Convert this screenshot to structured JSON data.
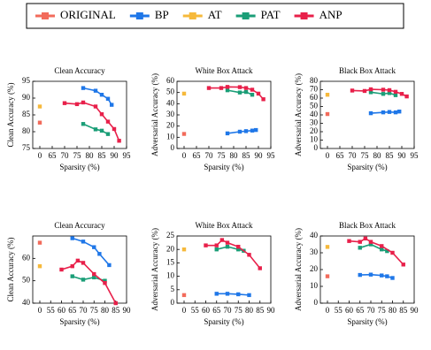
{
  "chart_data": [
    {
      "type": "line",
      "title": "Clean Accuracy",
      "xlabel": "Sparsity (%)",
      "ylabel": "Clean Accuracy (%)",
      "legend": "top",
      "xlim": [
        0,
        95
      ],
      "xticks": [
        0,
        65,
        70,
        75,
        80,
        85,
        90,
        95
      ],
      "ylim": [
        75,
        95
      ],
      "yticks": [
        75,
        80,
        85,
        90,
        95
      ],
      "series": [
        {
          "name": "ORIGINAL",
          "color": "#f26b5b",
          "x": [
            0
          ],
          "values": [
            82.7
          ]
        },
        {
          "name": "BP",
          "color": "#1f77e8",
          "x": [
            77.5,
            82.5,
            85,
            87.5,
            89
          ],
          "values": [
            93,
            92.2,
            91,
            89.8,
            88
          ]
        },
        {
          "name": "AT",
          "color": "#f6b93b",
          "x": [
            0
          ],
          "values": [
            87.5
          ]
        },
        {
          "name": "PAT",
          "color": "#1a9e77",
          "x": [
            77.5,
            82.5,
            85,
            87.5
          ],
          "values": [
            82.3,
            80.7,
            80.3,
            79.3
          ]
        },
        {
          "name": "ANP",
          "color": "#e8204a",
          "x": [
            70,
            75,
            77.5,
            82.5,
            85,
            87.5,
            90,
            92
          ],
          "values": [
            88.5,
            88.2,
            88.7,
            87.5,
            85.2,
            83,
            80.8,
            77.3
          ]
        }
      ]
    },
    {
      "type": "line",
      "title": "White Box Attack",
      "xlabel": "Sparsity (%)",
      "ylabel": "Adversarial Accuracy (%)",
      "xlim": [
        0,
        95
      ],
      "xticks": [
        0,
        65,
        70,
        75,
        80,
        85,
        90,
        95
      ],
      "ylim": [
        0,
        60
      ],
      "yticks": [
        0,
        10,
        20,
        30,
        40,
        50,
        60
      ],
      "series": [
        {
          "name": "ORIGINAL",
          "color": "#f26b5b",
          "x": [
            0
          ],
          "values": [
            13
          ]
        },
        {
          "name": "BP",
          "color": "#1f77e8",
          "x": [
            77.5,
            82.5,
            85,
            87.5,
            89
          ],
          "values": [
            13.5,
            15,
            15.5,
            16,
            16.5
          ]
        },
        {
          "name": "AT",
          "color": "#f6b93b",
          "x": [
            0
          ],
          "values": [
            49
          ]
        },
        {
          "name": "PAT",
          "color": "#1a9e77",
          "x": [
            77.5,
            82.5,
            85,
            87.5
          ],
          "values": [
            52,
            50,
            50.5,
            48
          ]
        },
        {
          "name": "ANP",
          "color": "#e8204a",
          "x": [
            70,
            75,
            77.5,
            82.5,
            85,
            87.5,
            90,
            92
          ],
          "values": [
            54,
            54,
            55,
            54.8,
            54,
            52.5,
            49,
            44
          ]
        }
      ]
    },
    {
      "type": "line",
      "title": "Black Box Attack",
      "xlabel": "Sparsity (%)",
      "ylabel": "Adversarial Accuracy (%)",
      "xlim": [
        0,
        95
      ],
      "xticks": [
        0,
        65,
        70,
        75,
        80,
        85,
        90,
        95
      ],
      "ylim": [
        0,
        80
      ],
      "yticks": [
        0,
        10,
        20,
        30,
        40,
        50,
        60,
        70,
        80
      ],
      "series": [
        {
          "name": "ORIGINAL",
          "color": "#f26b5b",
          "x": [
            0
          ],
          "values": [
            41
          ]
        },
        {
          "name": "BP",
          "color": "#1f77e8",
          "x": [
            77.5,
            82.5,
            85,
            87.5,
            89
          ],
          "values": [
            42,
            43,
            43.5,
            43,
            44
          ]
        },
        {
          "name": "AT",
          "color": "#f6b93b",
          "x": [
            0
          ],
          "values": [
            64
          ]
        },
        {
          "name": "PAT",
          "color": "#1a9e77",
          "x": [
            77.5,
            82.5,
            85,
            87.5
          ],
          "values": [
            67,
            65,
            66,
            63.5
          ]
        },
        {
          "name": "ANP",
          "color": "#e8204a",
          "x": [
            70,
            75,
            77.5,
            82.5,
            85,
            87.5,
            90,
            92
          ],
          "values": [
            69,
            68.5,
            70.5,
            70,
            69.5,
            67.5,
            65,
            62
          ]
        }
      ]
    },
    {
      "type": "line",
      "title": "Clean Accuracy",
      "xlabel": "Sparsity (%)",
      "ylabel": "Clean Accuracy (%)",
      "xlim": [
        0,
        90
      ],
      "xticks": [
        0,
        55,
        60,
        65,
        70,
        75,
        80,
        85,
        90
      ],
      "ylim": [
        40,
        70
      ],
      "yticks": [
        40,
        50,
        60
      ],
      "series": [
        {
          "name": "ORIGINAL",
          "color": "#f26b5b",
          "x": [
            0
          ],
          "values": [
            67
          ]
        },
        {
          "name": "BP",
          "color": "#1f77e8",
          "x": [
            65,
            70,
            75,
            77.5,
            82
          ],
          "values": [
            69,
            67.5,
            65,
            62,
            57
          ]
        },
        {
          "name": "AT",
          "color": "#f6b93b",
          "x": [
            0
          ],
          "values": [
            56.5
          ]
        },
        {
          "name": "PAT",
          "color": "#1a9e77",
          "x": [
            65,
            70,
            75,
            80
          ],
          "values": [
            52,
            50.5,
            51.5,
            50
          ]
        },
        {
          "name": "ANP",
          "color": "#e8204a",
          "x": [
            60,
            65,
            67.5,
            70,
            75,
            80,
            85
          ],
          "values": [
            55,
            56.5,
            59,
            58,
            53,
            49,
            40
          ]
        }
      ]
    },
    {
      "type": "line",
      "title": "White Box Attack",
      "xlabel": "Sparsity (%)",
      "ylabel": "Adversarial Accuracy (%)",
      "xlim": [
        0,
        90
      ],
      "xticks": [
        0,
        55,
        60,
        65,
        70,
        75,
        80,
        85,
        90
      ],
      "ylim": [
        0,
        25
      ],
      "yticks": [
        0,
        5,
        10,
        15,
        20,
        25
      ],
      "series": [
        {
          "name": "ORIGINAL",
          "color": "#f26b5b",
          "x": [
            0
          ],
          "values": [
            3
          ]
        },
        {
          "name": "BP",
          "color": "#1f77e8",
          "x": [
            65,
            70,
            75,
            80
          ],
          "values": [
            3.5,
            3.5,
            3.3,
            3
          ]
        },
        {
          "name": "AT",
          "color": "#f6b93b",
          "x": [
            0
          ],
          "values": [
            20
          ]
        },
        {
          "name": "PAT",
          "color": "#1a9e77",
          "x": [
            65,
            70,
            75,
            77.5
          ],
          "values": [
            20,
            21,
            20,
            19.5
          ]
        },
        {
          "name": "ANP",
          "color": "#e8204a",
          "x": [
            60,
            65,
            67.5,
            70,
            75,
            80,
            85
          ],
          "values": [
            21.5,
            21.5,
            23.5,
            22.5,
            21,
            18,
            13
          ]
        }
      ]
    },
    {
      "type": "line",
      "title": "Black Box Attack",
      "xlabel": "Sparsity (%)",
      "ylabel": "Adversarial Accuracy (%)",
      "xlim": [
        0,
        90
      ],
      "xticks": [
        0,
        55,
        60,
        65,
        70,
        75,
        80,
        85,
        90
      ],
      "ylim": [
        0,
        40
      ],
      "yticks": [
        0,
        10,
        20,
        30,
        40
      ],
      "series": [
        {
          "name": "ORIGINAL",
          "color": "#f26b5b",
          "x": [
            0
          ],
          "values": [
            16
          ]
        },
        {
          "name": "BP",
          "color": "#1f77e8",
          "x": [
            65,
            70,
            75,
            77.5,
            80
          ],
          "values": [
            16.8,
            17,
            16.5,
            16,
            15
          ]
        },
        {
          "name": "AT",
          "color": "#f6b93b",
          "x": [
            0
          ],
          "values": [
            33.5
          ]
        },
        {
          "name": "PAT",
          "color": "#1a9e77",
          "x": [
            65,
            70,
            75,
            77.5
          ],
          "values": [
            33,
            35,
            32,
            31
          ]
        },
        {
          "name": "ANP",
          "color": "#e8204a",
          "x": [
            60,
            65,
            67.5,
            70,
            75,
            80,
            85
          ],
          "values": [
            37,
            36.5,
            38.5,
            36.5,
            34,
            30,
            23
          ]
        }
      ]
    }
  ]
}
